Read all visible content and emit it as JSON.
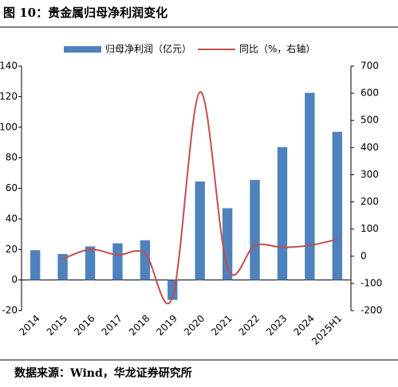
{
  "chart_data": {
    "type": "bar+line",
    "title": "图 10：贵金属归母净利润变化",
    "source": "数据来源：Wind，华龙证券研究所",
    "categories": [
      "2014",
      "2015",
      "2016",
      "2017",
      "2018",
      "2019",
      "2020",
      "2021",
      "2022",
      "2023",
      "2024",
      "2025H1"
    ],
    "series": [
      {
        "name": "归母净利润（亿元）",
        "type": "bar",
        "color": "#4f81bd",
        "values": [
          19.5,
          17,
          22,
          24,
          26,
          -13,
          64.5,
          47,
          65.5,
          87,
          122.5,
          97
        ]
      },
      {
        "name": "同比（%，右轴）",
        "type": "line",
        "axis": "y2",
        "smooth": true,
        "color": "#c0504d",
        "values": [
          null,
          -10,
          25,
          5,
          10,
          -150,
          605,
          -40,
          40,
          33,
          40,
          62
        ]
      }
    ],
    "ylim": [
      -20,
      140
    ],
    "yticks": [
      -20,
      0,
      20,
      40,
      60,
      80,
      100,
      120,
      140
    ],
    "y2lim": [
      -200,
      700
    ],
    "y2ticks": [
      -200,
      -100,
      0,
      100,
      200,
      300,
      400,
      500,
      600,
      700
    ],
    "grid": false,
    "legend": "top"
  }
}
